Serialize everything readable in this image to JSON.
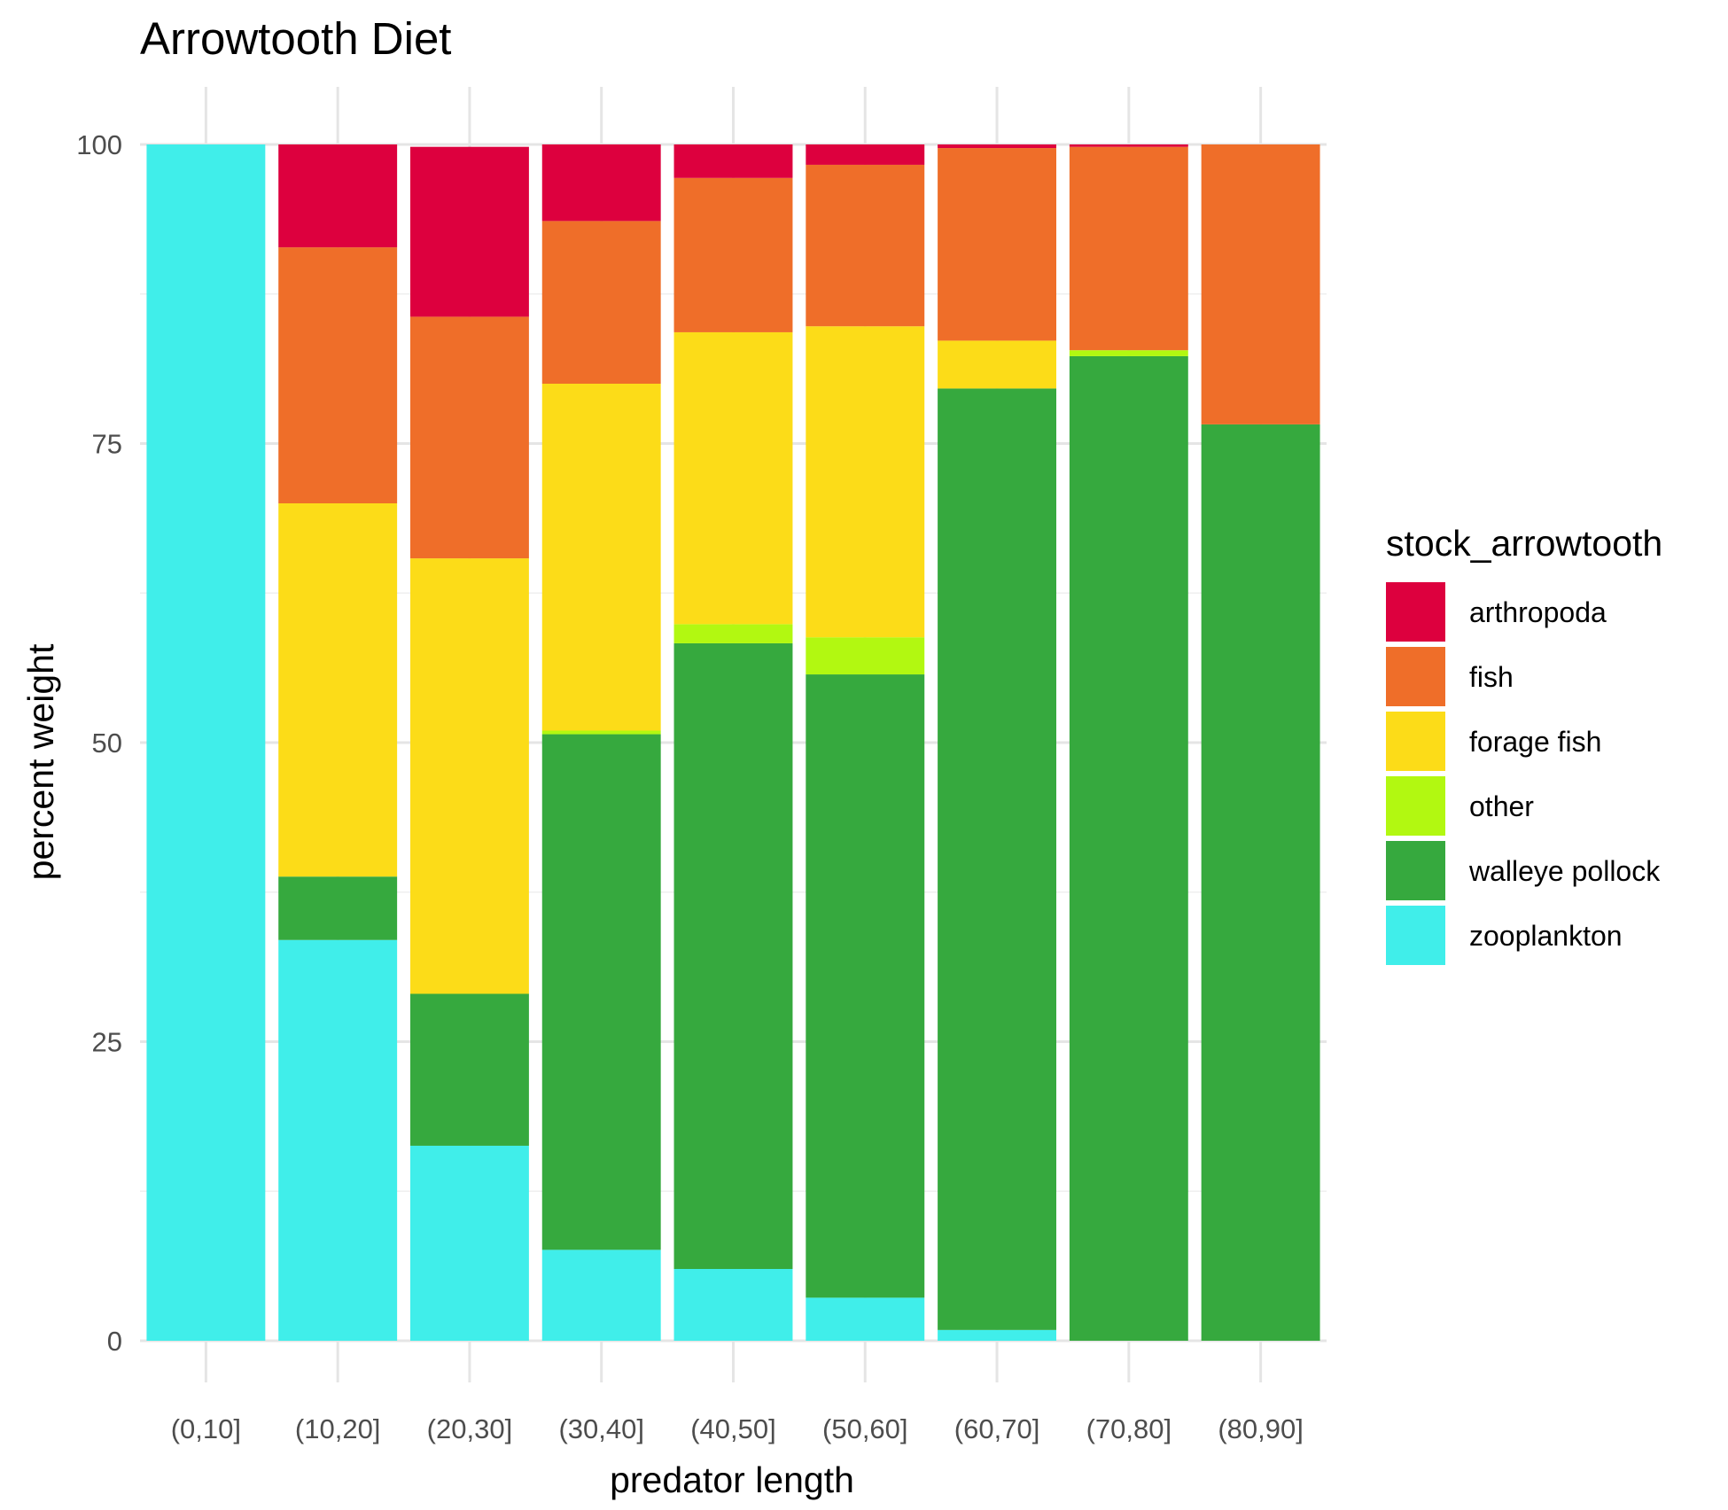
{
  "chart_data": {
    "type": "bar",
    "stacked": true,
    "title": "Arrowtooth Diet",
    "xlabel": "predator length",
    "ylabel": "percent weight",
    "ylim": [
      0,
      100
    ],
    "yticks": [
      0,
      25,
      50,
      75,
      100
    ],
    "grid": true,
    "legend_position": "right",
    "legend_title": "stock_arrowtooth",
    "categories": [
      "(0,10]",
      "(10,20]",
      "(20,30]",
      "(30,40]",
      "(40,50]",
      "(50,60]",
      "(60,70]",
      "(70,80]",
      "(80,90]"
    ],
    "series": [
      {
        "name": "zooplankton",
        "color": "#40EEEA",
        "values": [
          100,
          33.5,
          16.3,
          7.6,
          6.0,
          3.6,
          0.9,
          0,
          0
        ]
      },
      {
        "name": "walleye pollock",
        "color": "#36A93E",
        "values": [
          0,
          5.3,
          12.7,
          43.1,
          52.3,
          52.1,
          78.7,
          82.3,
          76.6
        ]
      },
      {
        "name": "other",
        "color": "#B2F811",
        "values": [
          0,
          0,
          0,
          0.3,
          1.6,
          3.1,
          0,
          0.5,
          0
        ]
      },
      {
        "name": "forage fish",
        "color": "#FCDC18",
        "values": [
          0,
          31.2,
          36.4,
          29.0,
          24.4,
          26.0,
          4.0,
          0,
          0
        ]
      },
      {
        "name": "fish",
        "color": "#EF6E29",
        "values": [
          0,
          21.4,
          20.2,
          13.6,
          12.9,
          13.5,
          16.1,
          17.0,
          23.4
        ]
      },
      {
        "name": "arthropoda",
        "color": "#DD003E",
        "values": [
          0,
          8.6,
          14.2,
          6.4,
          2.8,
          1.7,
          0.3,
          0.2,
          0
        ]
      }
    ],
    "legend_order": [
      "arthropoda",
      "fish",
      "forage fish",
      "other",
      "walleye pollock",
      "zooplankton"
    ]
  }
}
